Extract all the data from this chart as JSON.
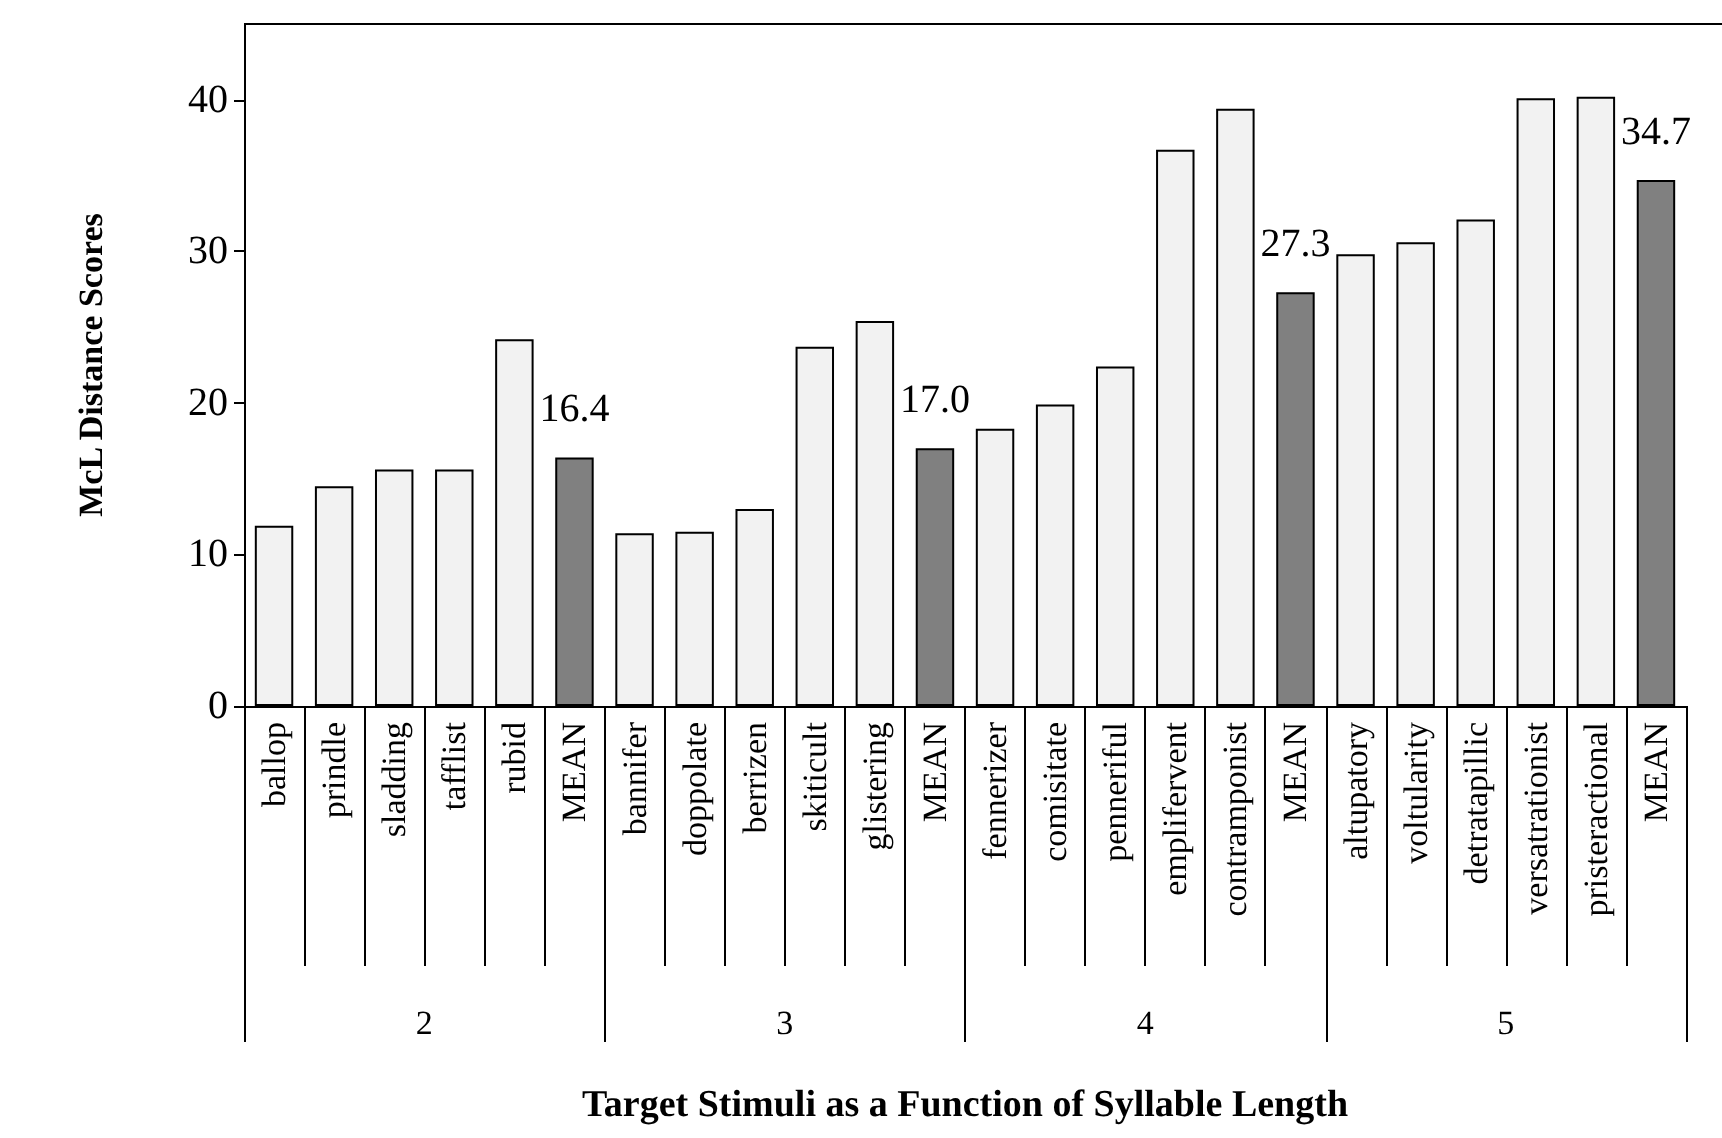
{
  "chart_data": {
    "type": "bar",
    "xlabel": "Target Stimuli as a Function of Syllable Length",
    "ylabel": "McL Distance Scores",
    "categories": [
      "ballop",
      "prindle",
      "sladding",
      "tafflist",
      "rubid",
      "MEAN",
      "bannifer",
      "doppolate",
      "berrizen",
      "skiticult",
      "glistering",
      "MEAN",
      "fennerizer",
      "comisitate",
      "penneriful",
      "emplifervent",
      "contramponist",
      "MEAN",
      "altupatory",
      "voltularity",
      "detratapillic",
      "versatrationist",
      "pristeractional",
      "MEAN"
    ],
    "values": [
      11.9,
      14.5,
      15.6,
      15.6,
      24.2,
      16.4,
      11.4,
      11.5,
      13.0,
      23.7,
      25.4,
      17.0,
      18.3,
      19.9,
      22.4,
      36.7,
      39.4,
      27.3,
      29.8,
      30.6,
      32.1,
      40.1,
      40.2,
      34.7
    ],
    "colors": [
      "#f2f2f2",
      "#f2f2f2",
      "#f2f2f2",
      "#f2f2f2",
      "#f2f2f2",
      "#808080",
      "#f2f2f2",
      "#f2f2f2",
      "#f2f2f2",
      "#f2f2f2",
      "#f2f2f2",
      "#808080",
      "#f2f2f2",
      "#f2f2f2",
      "#f2f2f2",
      "#f2f2f2",
      "#f2f2f2",
      "#808080",
      "#f2f2f2",
      "#f2f2f2",
      "#f2f2f2",
      "#f2f2f2",
      "#f2f2f2",
      "#808080"
    ],
    "value_labels": [
      null,
      null,
      null,
      null,
      null,
      "16.4",
      null,
      null,
      null,
      null,
      null,
      "17.0",
      null,
      null,
      null,
      null,
      null,
      "27.3",
      null,
      null,
      null,
      null,
      null,
      "34.7"
    ],
    "ylim": [
      0,
      45
    ],
    "yticks": [
      0,
      10,
      20,
      30,
      40
    ],
    "annotations": [
      "2",
      "3",
      "4",
      "5"
    ]
  }
}
